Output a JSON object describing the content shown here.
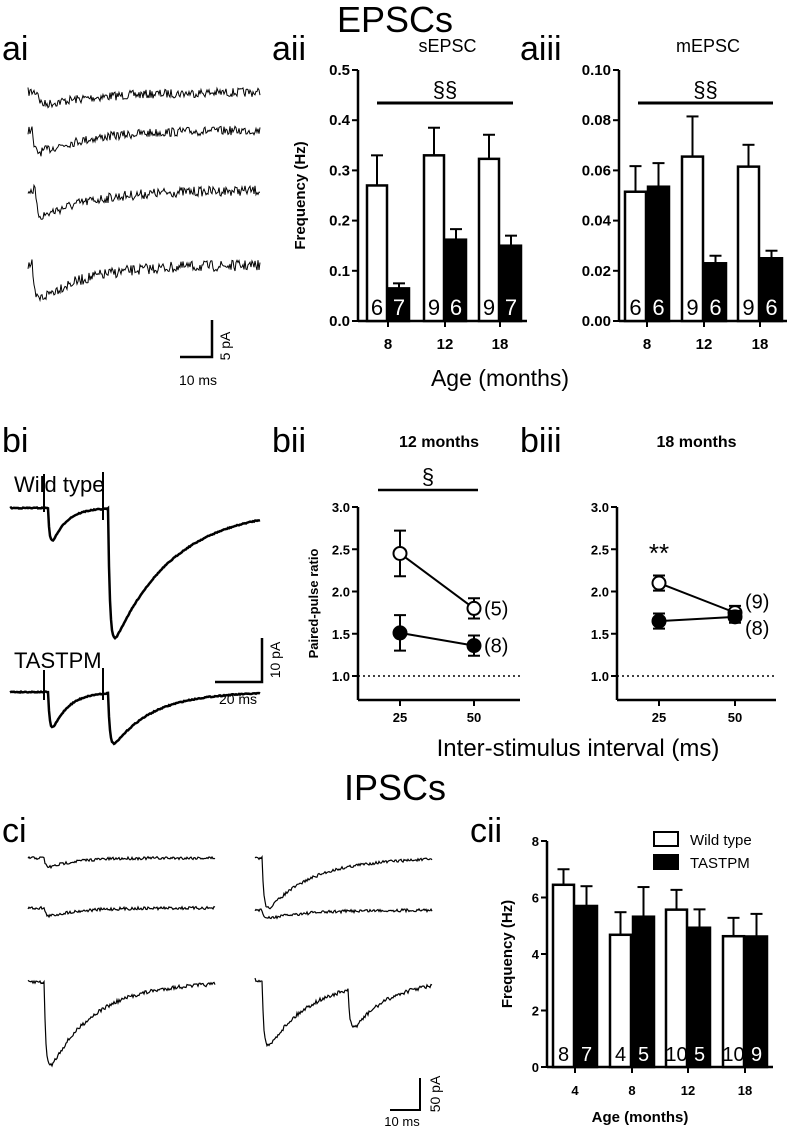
{
  "section_titles": {
    "epscs": "EPSCs",
    "ipscs": "IPSCs"
  },
  "panel_labels": {
    "ai": "ai",
    "aii": "aii",
    "aiii": "aiii",
    "bi": "bi",
    "bii": "bii",
    "biii": "biii",
    "ci": "ci",
    "cii": "cii"
  },
  "scale_bars": {
    "ai": {
      "y": "5 pA",
      "x": "10 ms"
    },
    "bi": {
      "y": "10 pA",
      "x": "20 ms"
    },
    "ci": {
      "y": "50 pA",
      "x": "10 ms"
    }
  },
  "trace_labels": {
    "wild_type": "Wild type",
    "tastpm": "TASTPM"
  },
  "shared_labels": {
    "age_a": "Age (months)",
    "isi_b": "Inter-stimulus interval (ms)"
  },
  "colors": {
    "wild_type": "#ffffff",
    "tastpm": "#000000"
  },
  "chart_data": [
    {
      "id": "aii",
      "type": "bar",
      "title": "sEPSC",
      "ylabel": "Frequency (Hz)",
      "xlabel": "Age (months)",
      "ylim": [
        0,
        0.5
      ],
      "yticks": [
        "0.0",
        "0.1",
        "0.2",
        "0.3",
        "0.4",
        "0.5"
      ],
      "ytick_values": [
        0,
        0.1,
        0.2,
        0.3,
        0.4,
        0.5
      ],
      "categories": [
        "8",
        "12",
        "18"
      ],
      "series": [
        {
          "name": "Wild type",
          "values": [
            0.27,
            0.33,
            0.323
          ],
          "errors": [
            0.06,
            0.055,
            0.048
          ],
          "n": [
            "6",
            "9",
            "9"
          ]
        },
        {
          "name": "TASTPM",
          "values": [
            0.065,
            0.162,
            0.15
          ],
          "errors": [
            0.01,
            0.021,
            0.02
          ],
          "n": [
            "7",
            "6",
            "7"
          ]
        }
      ],
      "significance": "§§"
    },
    {
      "id": "aiii",
      "type": "bar",
      "title": "mEPSC",
      "ylabel": "",
      "xlabel": "Age (months)",
      "ylim": [
        0,
        0.1
      ],
      "yticks": [
        "0.00",
        "0.02",
        "0.04",
        "0.06",
        "0.08",
        "0.10"
      ],
      "ytick_values": [
        0,
        0.02,
        0.04,
        0.06,
        0.08,
        0.1
      ],
      "categories": [
        "8",
        "12",
        "18"
      ],
      "series": [
        {
          "name": "Wild type",
          "values": [
            0.0515,
            0.0655,
            0.0615
          ],
          "errors": [
            0.0102,
            0.016,
            0.0087
          ],
          "n": [
            "6",
            "9",
            "9"
          ]
        },
        {
          "name": "TASTPM",
          "values": [
            0.0535,
            0.023,
            0.025
          ],
          "errors": [
            0.0094,
            0.003,
            0.003
          ],
          "n": [
            "6",
            "6",
            "6"
          ]
        }
      ],
      "significance": "§§"
    },
    {
      "id": "bii",
      "type": "line",
      "title": "12 months",
      "ylabel": "Paired-pulse ratio",
      "xlabel": "Inter-stimulus interval (ms)",
      "ylim": [
        1.0,
        3.0
      ],
      "yticks": [
        "1.0",
        "1.5",
        "2.0",
        "2.5",
        "3.0"
      ],
      "ytick_values": [
        1,
        1.5,
        2,
        2.5,
        3
      ],
      "x": [
        "25",
        "50"
      ],
      "reference_line": 1.0,
      "series": [
        {
          "name": "Wild type",
          "values": [
            2.45,
            1.8
          ],
          "errors": [
            0.27,
            0.12
          ],
          "n": "(5)"
        },
        {
          "name": "TASTPM",
          "values": [
            1.51,
            1.36
          ],
          "errors": [
            0.21,
            0.12
          ],
          "n": "(8)"
        }
      ],
      "significance": "§"
    },
    {
      "id": "biii",
      "type": "line",
      "title": "18 months",
      "ylabel": "",
      "xlabel": "Inter-stimulus interval (ms)",
      "ylim": [
        1.0,
        3.0
      ],
      "yticks": [
        "1.0",
        "1.5",
        "2.0",
        "2.5",
        "3.0"
      ],
      "ytick_values": [
        1,
        1.5,
        2,
        2.5,
        3
      ],
      "x": [
        "25",
        "50"
      ],
      "reference_line": 1.0,
      "series": [
        {
          "name": "Wild type",
          "values": [
            2.1,
            1.75
          ],
          "errors": [
            0.09,
            0.08
          ],
          "n": "(9)"
        },
        {
          "name": "TASTPM",
          "values": [
            1.65,
            1.7
          ],
          "errors": [
            0.09,
            0.07
          ],
          "n": "(8)"
        }
      ],
      "significance": "**"
    },
    {
      "id": "cii",
      "type": "bar",
      "title": "",
      "ylabel": "Frequency (Hz)",
      "xlabel": "Age (months)",
      "ylim": [
        0,
        8
      ],
      "yticks": [
        "0",
        "2",
        "4",
        "6",
        "8"
      ],
      "ytick_values": [
        0,
        2,
        4,
        6,
        8
      ],
      "categories": [
        "4",
        "8",
        "12",
        "18"
      ],
      "legend": [
        "Wild type",
        "TASTPM"
      ],
      "legend_position": "top-right",
      "series": [
        {
          "name": "Wild type",
          "values": [
            6.45,
            4.68,
            5.57,
            4.63
          ],
          "errors": [
            0.55,
            0.8,
            0.7,
            0.65
          ],
          "n": [
            "8",
            "4",
            "10",
            "10"
          ]
        },
        {
          "name": "TASTPM",
          "values": [
            5.7,
            5.32,
            4.93,
            4.62
          ],
          "errors": [
            0.7,
            1.05,
            0.65,
            0.8
          ],
          "n": [
            "7",
            "5",
            "5",
            "9"
          ]
        }
      ]
    }
  ]
}
